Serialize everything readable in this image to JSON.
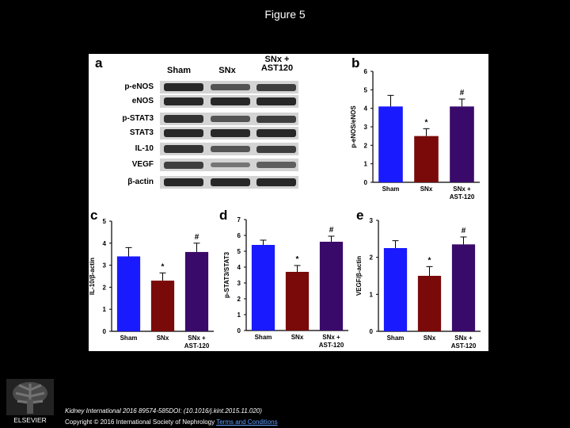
{
  "slide": {
    "title": "Figure 5"
  },
  "panel_a": {
    "letter": "a",
    "lanes": [
      "Sham",
      "SNx",
      "SNx +\nAST120"
    ],
    "rows": [
      "p-eNOS",
      "eNOS",
      "p-STAT3",
      "STAT3",
      "IL-10",
      "VEGF",
      "β-actin"
    ]
  },
  "panel_b": {
    "letter": "b"
  },
  "panel_c": {
    "letter": "c"
  },
  "panel_d": {
    "letter": "d"
  },
  "panel_e": {
    "letter": "e"
  },
  "chart_data": [
    {
      "panel": "b",
      "type": "bar",
      "ylabel": "p-eNOS/eNOS",
      "ylim": [
        0,
        6
      ],
      "yticks": [
        0,
        1,
        2,
        3,
        4,
        5,
        6
      ],
      "categories": [
        "Sham",
        "SNx",
        "SNx + AST-120"
      ],
      "values": [
        4.1,
        2.5,
        4.1
      ],
      "errors": [
        0.6,
        0.4,
        0.4
      ],
      "annotations": [
        "",
        "*",
        "#"
      ],
      "colors": [
        "#1a1aff",
        "#7a0a0a",
        "#3a0a6a"
      ]
    },
    {
      "panel": "c",
      "type": "bar",
      "ylabel": "IL-10/β-actin",
      "ylim": [
        0,
        5
      ],
      "yticks": [
        0,
        1,
        2,
        3,
        4,
        5
      ],
      "categories": [
        "Sham",
        "SNx",
        "SNx + AST-120"
      ],
      "values": [
        3.4,
        2.3,
        3.6
      ],
      "errors": [
        0.4,
        0.35,
        0.4
      ],
      "annotations": [
        "",
        "*",
        "#"
      ],
      "colors": [
        "#1a1aff",
        "#7a0a0a",
        "#3a0a6a"
      ]
    },
    {
      "panel": "d",
      "type": "bar",
      "ylabel": "p-STAT3/STAT3",
      "ylim": [
        0,
        7
      ],
      "yticks": [
        0,
        1,
        2,
        3,
        4,
        5,
        6,
        7
      ],
      "categories": [
        "Sham",
        "SNx",
        "SNx + AST-120"
      ],
      "values": [
        5.4,
        3.7,
        5.6
      ],
      "errors": [
        0.3,
        0.4,
        0.35
      ],
      "annotations": [
        "",
        "*",
        "#"
      ],
      "colors": [
        "#1a1aff",
        "#7a0a0a",
        "#3a0a6a"
      ]
    },
    {
      "panel": "e",
      "type": "bar",
      "ylabel": "VEGF/β-actin",
      "ylim": [
        0,
        3
      ],
      "yticks": [
        0,
        1,
        2,
        3
      ],
      "categories": [
        "Sham",
        "SNx",
        "SNx + AST-120"
      ],
      "values": [
        2.25,
        1.5,
        2.35
      ],
      "errors": [
        0.2,
        0.25,
        0.2
      ],
      "annotations": [
        "",
        "*",
        "#"
      ],
      "colors": [
        "#1a1aff",
        "#7a0a0a",
        "#3a0a6a"
      ]
    }
  ],
  "footer": {
    "line1": "Kidney International 2016 89574-585DOI: (10.1016/j.kint.2015.11.020)",
    "line2_prefix": "Copyright © 2016 International Society of Nephrology ",
    "line2_link": "Terms and Conditions"
  },
  "logo": {
    "text": "ELSEVIER"
  }
}
